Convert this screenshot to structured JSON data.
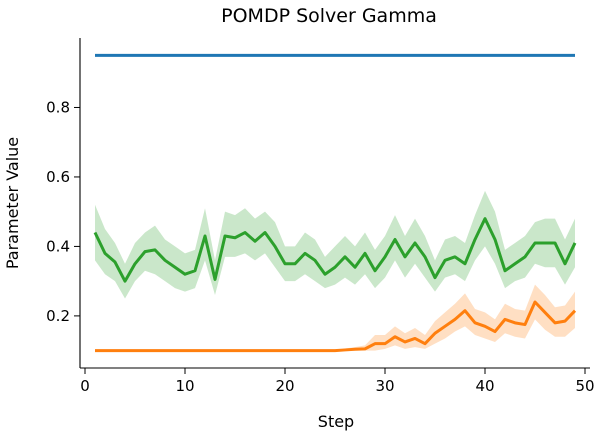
{
  "chart_data": {
    "type": "line",
    "title": "POMDP Solver Gamma",
    "xlabel": "Step",
    "ylabel": "Parameter Value",
    "xlim": [
      -0.5,
      50.5
    ],
    "ylim": [
      0.05,
      1.0
    ],
    "xticks": [
      0,
      10,
      20,
      30,
      40,
      50
    ],
    "yticks": [
      0.2,
      0.4,
      0.6,
      0.8
    ],
    "grid": false,
    "legend": "none",
    "x": [
      1,
      2,
      3,
      4,
      5,
      6,
      7,
      8,
      9,
      10,
      11,
      12,
      13,
      14,
      15,
      16,
      17,
      18,
      19,
      20,
      21,
      22,
      23,
      24,
      25,
      26,
      27,
      28,
      29,
      30,
      31,
      32,
      33,
      34,
      35,
      36,
      37,
      38,
      39,
      40,
      41,
      42,
      43,
      44,
      45,
      46,
      47,
      48,
      49
    ],
    "series": [
      {
        "color": "#1f77b4",
        "values": [
          0.95,
          0.95,
          0.95,
          0.95,
          0.95,
          0.95,
          0.95,
          0.95,
          0.95,
          0.95,
          0.95,
          0.95,
          0.95,
          0.95,
          0.95,
          0.95,
          0.95,
          0.95,
          0.95,
          0.95,
          0.95,
          0.95,
          0.95,
          0.95,
          0.95,
          0.95,
          0.95,
          0.95,
          0.95,
          0.95,
          0.95,
          0.95,
          0.95,
          0.95,
          0.95,
          0.95,
          0.95,
          0.95,
          0.95,
          0.95,
          0.95,
          0.95,
          0.95,
          0.95,
          0.95,
          0.95,
          0.95,
          0.95,
          0.95
        ]
      },
      {
        "color": "#2ca02c",
        "values": [
          0.44,
          0.38,
          0.355,
          0.3,
          0.35,
          0.385,
          0.39,
          0.36,
          0.34,
          0.32,
          0.33,
          0.43,
          0.305,
          0.43,
          0.425,
          0.44,
          0.415,
          0.44,
          0.4,
          0.35,
          0.35,
          0.38,
          0.36,
          0.32,
          0.34,
          0.37,
          0.34,
          0.38,
          0.33,
          0.37,
          0.42,
          0.37,
          0.41,
          0.37,
          0.31,
          0.36,
          0.37,
          0.35,
          0.42,
          0.48,
          0.42,
          0.33,
          0.35,
          0.37,
          0.41,
          0.41,
          0.41,
          0.35,
          0.41
        ],
        "lower": [
          0.36,
          0.32,
          0.3,
          0.25,
          0.3,
          0.33,
          0.32,
          0.3,
          0.28,
          0.27,
          0.28,
          0.36,
          0.26,
          0.37,
          0.37,
          0.38,
          0.36,
          0.38,
          0.34,
          0.3,
          0.3,
          0.32,
          0.3,
          0.28,
          0.29,
          0.31,
          0.29,
          0.32,
          0.28,
          0.31,
          0.36,
          0.31,
          0.35,
          0.31,
          0.27,
          0.31,
          0.32,
          0.3,
          0.36,
          0.4,
          0.35,
          0.28,
          0.3,
          0.31,
          0.35,
          0.34,
          0.34,
          0.29,
          0.34
        ],
        "upper": [
          0.52,
          0.45,
          0.41,
          0.35,
          0.41,
          0.44,
          0.46,
          0.42,
          0.4,
          0.38,
          0.39,
          0.51,
          0.36,
          0.5,
          0.49,
          0.51,
          0.48,
          0.5,
          0.47,
          0.4,
          0.4,
          0.44,
          0.42,
          0.37,
          0.4,
          0.43,
          0.4,
          0.44,
          0.39,
          0.43,
          0.49,
          0.43,
          0.48,
          0.43,
          0.36,
          0.42,
          0.43,
          0.41,
          0.49,
          0.56,
          0.5,
          0.39,
          0.41,
          0.43,
          0.47,
          0.48,
          0.48,
          0.42,
          0.48
        ]
      },
      {
        "color": "#ff7f0e",
        "values": [
          0.1,
          0.1,
          0.1,
          0.1,
          0.1,
          0.1,
          0.1,
          0.1,
          0.1,
          0.1,
          0.1,
          0.1,
          0.1,
          0.1,
          0.1,
          0.1,
          0.1,
          0.1,
          0.1,
          0.1,
          0.1,
          0.1,
          0.1,
          0.1,
          0.1,
          0.102,
          0.104,
          0.105,
          0.12,
          0.12,
          0.14,
          0.125,
          0.135,
          0.12,
          0.15,
          0.17,
          0.19,
          0.215,
          0.18,
          0.17,
          0.155,
          0.19,
          0.18,
          0.175,
          0.24,
          0.21,
          0.18,
          0.185,
          0.215
        ],
        "lower": [
          0.1,
          0.1,
          0.1,
          0.1,
          0.1,
          0.1,
          0.1,
          0.1,
          0.1,
          0.1,
          0.1,
          0.1,
          0.1,
          0.1,
          0.1,
          0.1,
          0.1,
          0.1,
          0.1,
          0.1,
          0.1,
          0.1,
          0.1,
          0.1,
          0.1,
          0.1,
          0.1,
          0.1,
          0.1,
          0.105,
          0.115,
          0.105,
          0.11,
          0.105,
          0.12,
          0.135,
          0.155,
          0.17,
          0.145,
          0.135,
          0.125,
          0.15,
          0.14,
          0.135,
          0.19,
          0.16,
          0.14,
          0.14,
          0.165
        ],
        "upper": [
          0.1,
          0.1,
          0.1,
          0.1,
          0.1,
          0.1,
          0.1,
          0.1,
          0.1,
          0.1,
          0.1,
          0.1,
          0.1,
          0.1,
          0.1,
          0.1,
          0.1,
          0.1,
          0.1,
          0.1,
          0.1,
          0.1,
          0.1,
          0.1,
          0.1,
          0.106,
          0.11,
          0.115,
          0.145,
          0.145,
          0.17,
          0.15,
          0.165,
          0.145,
          0.185,
          0.21,
          0.235,
          0.265,
          0.22,
          0.21,
          0.19,
          0.235,
          0.22,
          0.215,
          0.29,
          0.26,
          0.225,
          0.23,
          0.27
        ]
      }
    ]
  }
}
